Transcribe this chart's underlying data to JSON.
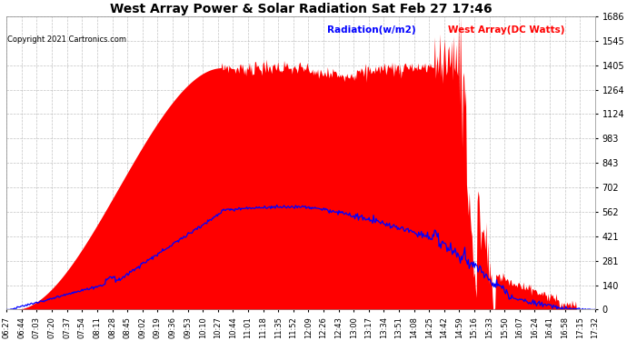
{
  "title": "West Array Power & Solar Radiation Sat Feb 27 17:46",
  "copyright": "Copyright 2021 Cartronics.com",
  "legend_radiation": "Radiation(w/m2)",
  "legend_west": "West Array(DC Watts)",
  "y_ticks": [
    0.0,
    140.5,
    280.9,
    421.4,
    561.9,
    702.4,
    842.8,
    983.3,
    1123.8,
    1264.2,
    1404.7,
    1545.2,
    1685.7
  ],
  "y_max": 1685.7,
  "x_labels": [
    "06:27",
    "06:44",
    "07:03",
    "07:20",
    "07:37",
    "07:54",
    "08:11",
    "08:28",
    "08:45",
    "09:02",
    "09:19",
    "09:36",
    "09:53",
    "10:10",
    "10:27",
    "10:44",
    "11:01",
    "11:18",
    "11:35",
    "11:52",
    "12:09",
    "12:26",
    "12:43",
    "13:00",
    "13:17",
    "13:34",
    "13:51",
    "14:08",
    "14:25",
    "14:42",
    "14:59",
    "15:16",
    "15:33",
    "15:50",
    "16:07",
    "16:24",
    "16:41",
    "16:58",
    "17:15",
    "17:32"
  ],
  "bg_color": "#ffffff",
  "grid_color": "#aaaaaa",
  "radiation_color": "#ff0000",
  "west_color": "#0000ff",
  "title_color": "#000000",
  "radiation_label_color": "#0000ff",
  "west_label_color": "#ff0000"
}
